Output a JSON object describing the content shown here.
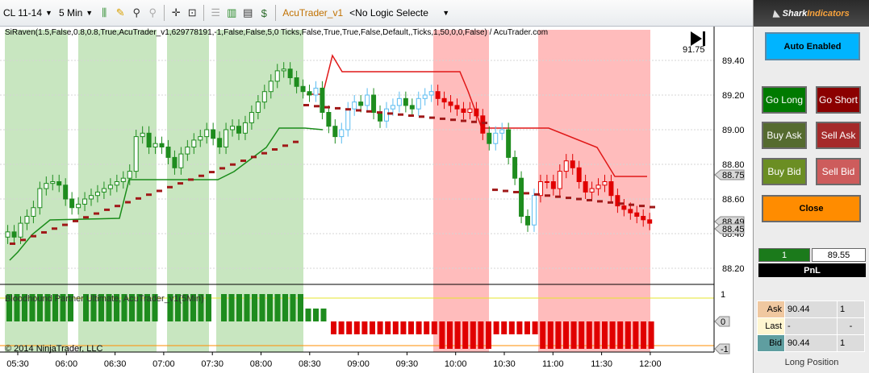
{
  "toolbar": {
    "instrument": "CL 11-14",
    "interval": "5 Min",
    "strategy": "AcuTrader_v1",
    "logic_select": "<No Logic Selecte"
  },
  "chart": {
    "indicator_label": "SiRaven(1.5,False,0.8,0.8,True,AcuTrader_v1,629778191,-1,False,False,5,0 Ticks,False,True,True,False,Default,,Ticks,1,50,0,0,False) / AcuTrader.com",
    "lower_label": "Bloodhound Partner Ultimate, AcuTrader_v1(5Min)",
    "copyright": "© 2014 NinjaTrader, LLC",
    "price_top_value": "91.75",
    "y_ticks": [
      "89.40",
      "89.20",
      "89.00",
      "88.80",
      "88.60",
      "88.40",
      "88.20"
    ],
    "price_badges": [
      "88.75",
      "88.49",
      "88.45"
    ],
    "lower_ticks": [
      "1",
      "0",
      "-1"
    ],
    "x_ticks": [
      "05:30",
      "06:00",
      "06:30",
      "07:00",
      "07:30",
      "08:00",
      "08:30",
      "09:00",
      "09:30",
      "10:00",
      "10:30",
      "11:00",
      "11:30",
      "12:00"
    ]
  },
  "side": {
    "brand_a": "Shark",
    "brand_b": "Indicators",
    "auto_label": "Auto Enabled",
    "go_long": "Go Long",
    "go_short": "Go Short",
    "buy_ask": "Buy Ask",
    "sell_ask": "Sell Ask",
    "buy_bid": "Buy Bid",
    "sell_bid": "Sell Bid",
    "close": "Close",
    "position_qty": "1",
    "position_price": "89.55",
    "pnl_label": "PnL",
    "ask_label": "Ask",
    "ask_price": "90.44",
    "ask_size": "1",
    "last_label": "Last",
    "last_price": "-",
    "last_size": "-",
    "bid_label": "Bid",
    "bid_price": "90.44",
    "bid_size": "1",
    "long_position": "Long Position"
  },
  "colors": {
    "bull_zone": "#c8e6c0",
    "bear_zone": "#ffbcbc",
    "bull_bar": "#1e8c1e",
    "bear_bar": "#e00000",
    "neutral_up": "#5bbcf0"
  }
}
